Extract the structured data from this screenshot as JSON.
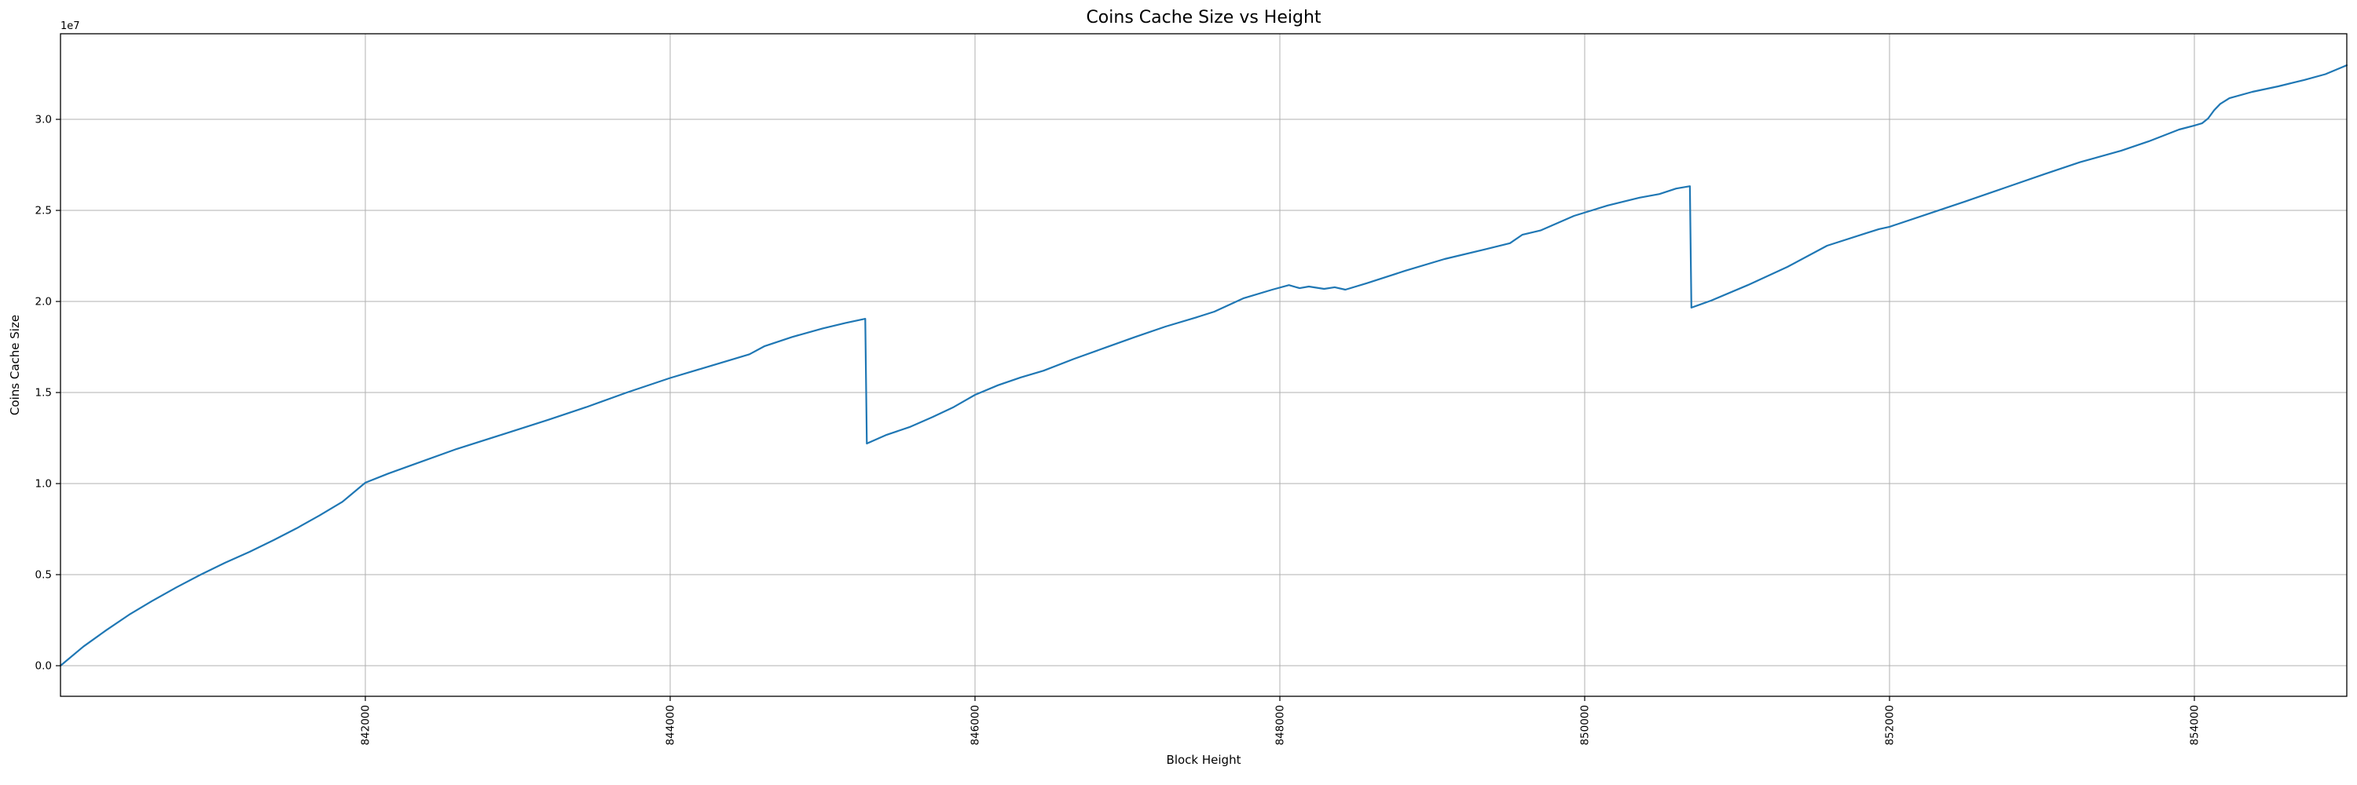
{
  "figure": {
    "background": "#ffffff"
  },
  "chart_data": {
    "type": "line",
    "title": "Coins Cache Size vs Height",
    "xlabel": "Block Height",
    "ylabel": "Coins Cache Size",
    "y_offset_label": "1e7",
    "grid": true,
    "legend": "none",
    "line_color": "#1f77b4",
    "grid_color": "#b0b0b0",
    "spine_color": "#000000",
    "xlim": [
      840000,
      855000
    ],
    "ylim_e7": [
      -0.168,
      3.47
    ],
    "x_ticks": [
      842000,
      844000,
      846000,
      848000,
      850000,
      852000,
      854000
    ],
    "x_tick_labels": [
      "842000",
      "844000",
      "846000",
      "848000",
      "850000",
      "852000",
      "854000"
    ],
    "y_ticks_e7": [
      0.0,
      0.5,
      1.0,
      1.5,
      2.0,
      2.5,
      3.0
    ],
    "y_tick_labels": [
      "0.0",
      "0.5",
      "1.0",
      "1.5",
      "2.0",
      "2.5",
      "3.0"
    ],
    "x_tick_rotation": 90,
    "series": [
      {
        "name": "coins-cache-size",
        "units": "1e7",
        "points_e7": [
          [
            840000,
            0.0
          ],
          [
            840150,
            0.105
          ],
          [
            840300,
            0.195
          ],
          [
            840450,
            0.28
          ],
          [
            840600,
            0.355
          ],
          [
            840760,
            0.43
          ],
          [
            840920,
            0.5
          ],
          [
            841080,
            0.565
          ],
          [
            841240,
            0.625
          ],
          [
            841400,
            0.69
          ],
          [
            841550,
            0.755
          ],
          [
            841700,
            0.825
          ],
          [
            841850,
            0.9
          ],
          [
            842000,
            1.005
          ],
          [
            842150,
            1.055
          ],
          [
            842300,
            1.1
          ],
          [
            842600,
            1.19
          ],
          [
            842900,
            1.27
          ],
          [
            843200,
            1.35
          ],
          [
            843450,
            1.42
          ],
          [
            843716,
            1.5
          ],
          [
            844000,
            1.58
          ],
          [
            844200,
            1.63
          ],
          [
            844400,
            1.68
          ],
          [
            844520,
            1.71
          ],
          [
            844620,
            1.755
          ],
          [
            844800,
            1.805
          ],
          [
            845000,
            1.852
          ],
          [
            845150,
            1.882
          ],
          [
            845280,
            1.905
          ],
          [
            845290,
            1.22
          ],
          [
            845420,
            1.268
          ],
          [
            845570,
            1.31
          ],
          [
            845720,
            1.365
          ],
          [
            845860,
            1.42
          ],
          [
            846000,
            1.487
          ],
          [
            846150,
            1.54
          ],
          [
            846300,
            1.583
          ],
          [
            846450,
            1.62
          ],
          [
            846650,
            1.685
          ],
          [
            846850,
            1.745
          ],
          [
            847050,
            1.805
          ],
          [
            847250,
            1.862
          ],
          [
            847450,
            1.912
          ],
          [
            847570,
            1.944
          ],
          [
            847760,
            2.017
          ],
          [
            847950,
            2.065
          ],
          [
            848060,
            2.09
          ],
          [
            848130,
            2.073
          ],
          [
            848190,
            2.082
          ],
          [
            848290,
            2.069
          ],
          [
            848360,
            2.078
          ],
          [
            848430,
            2.065
          ],
          [
            848570,
            2.1
          ],
          [
            848820,
            2.168
          ],
          [
            849080,
            2.233
          ],
          [
            849340,
            2.285
          ],
          [
            849510,
            2.32
          ],
          [
            849590,
            2.366
          ],
          [
            849710,
            2.39
          ],
          [
            849930,
            2.47
          ],
          [
            850150,
            2.527
          ],
          [
            850360,
            2.57
          ],
          [
            850490,
            2.59
          ],
          [
            850600,
            2.62
          ],
          [
            850690,
            2.633
          ],
          [
            850700,
            1.966
          ],
          [
            850830,
            2.005
          ],
          [
            851070,
            2.09
          ],
          [
            851330,
            2.19
          ],
          [
            851590,
            2.306
          ],
          [
            851850,
            2.376
          ],
          [
            851930,
            2.397
          ],
          [
            852000,
            2.41
          ],
          [
            852250,
            2.48
          ],
          [
            852500,
            2.55
          ],
          [
            852760,
            2.625
          ],
          [
            853020,
            2.7
          ],
          [
            853250,
            2.765
          ],
          [
            853520,
            2.828
          ],
          [
            853700,
            2.879
          ],
          [
            853900,
            2.944
          ],
          [
            854000,
            2.966
          ],
          [
            854050,
            2.978
          ],
          [
            854090,
            3.005
          ],
          [
            854130,
            3.05
          ],
          [
            854170,
            3.085
          ],
          [
            854230,
            3.116
          ],
          [
            854380,
            3.151
          ],
          [
            854550,
            3.181
          ],
          [
            854720,
            3.216
          ],
          [
            854860,
            3.248
          ],
          [
            855000,
            3.297
          ]
        ]
      }
    ]
  }
}
